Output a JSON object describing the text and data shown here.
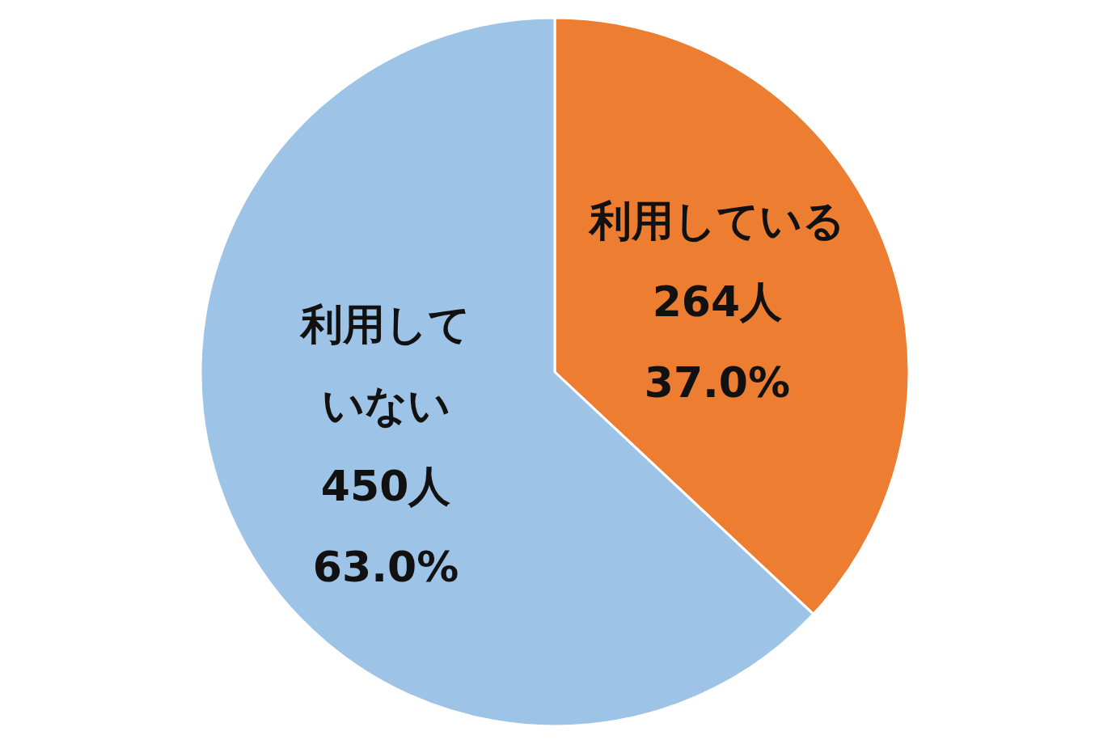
{
  "chart_data": {
    "type": "pie",
    "categories": [
      "利用している",
      "利用していない"
    ],
    "values": [
      264,
      450
    ],
    "value_labels": [
      "264人\n37.0%",
      "450人\n63.0%"
    ],
    "colors": [
      "#ed7d31",
      "#9dc3e6"
    ]
  }
}
